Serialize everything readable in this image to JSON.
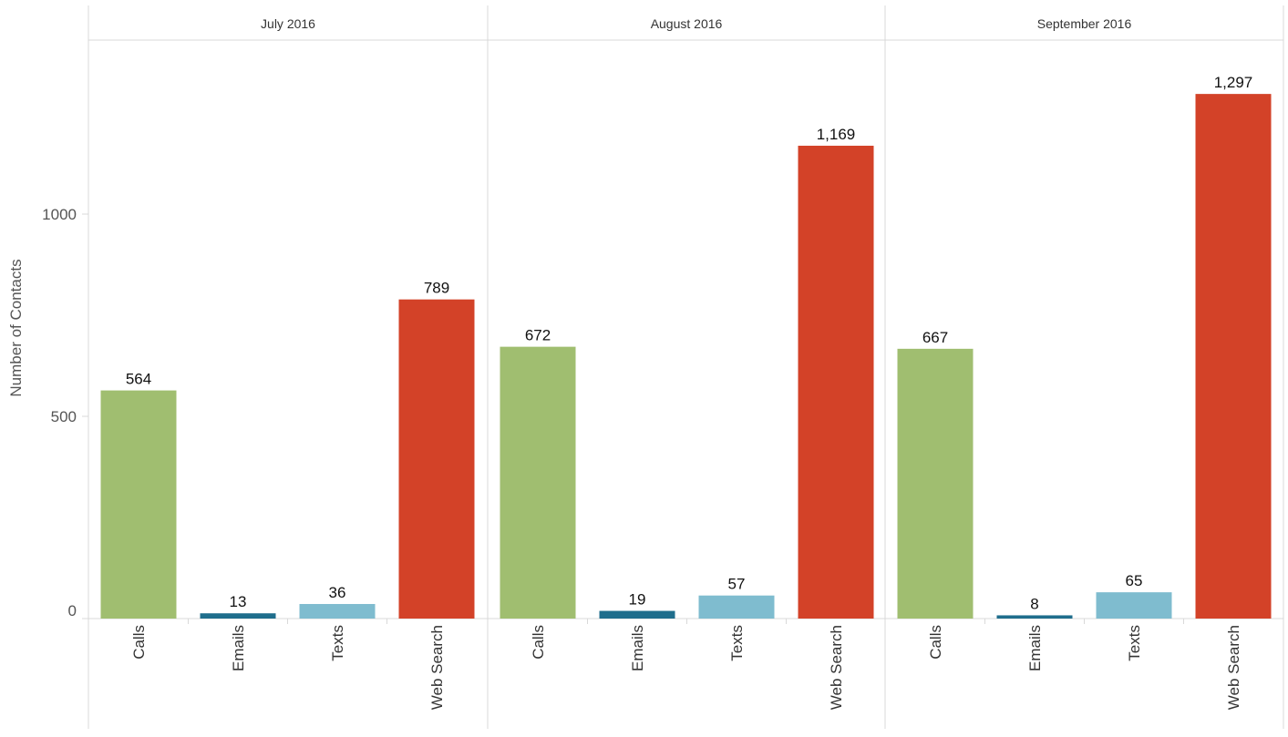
{
  "chart_data": {
    "type": "bar",
    "title": "",
    "ylabel": "Number of Contacts",
    "xlabel": "",
    "ylim": [
      0,
      1500
    ],
    "y_ticks": [
      0,
      500,
      1000
    ],
    "y_tick_labels": [
      "0",
      "500",
      "1000"
    ],
    "grid": false,
    "legend": "none",
    "categories": [
      "Calls",
      "Emails",
      "Texts",
      "Web Search"
    ],
    "category_colors": {
      "Calls": "#a0be70",
      "Emails": "#1f6e8c",
      "Texts": "#7fbccf",
      "Web Search": "#d34228"
    },
    "panels": [
      {
        "header": "July 2016",
        "values": [
          564,
          13,
          36,
          789
        ],
        "labels": [
          "564",
          "13",
          "36",
          "789"
        ]
      },
      {
        "header": "August 2016",
        "values": [
          672,
          19,
          57,
          1169
        ],
        "labels": [
          "672",
          "19",
          "57",
          "1,169"
        ]
      },
      {
        "header": "September 2016",
        "values": [
          667,
          8,
          65,
          1297
        ],
        "labels": [
          "667",
          "8",
          "65",
          "1,297"
        ]
      }
    ]
  }
}
